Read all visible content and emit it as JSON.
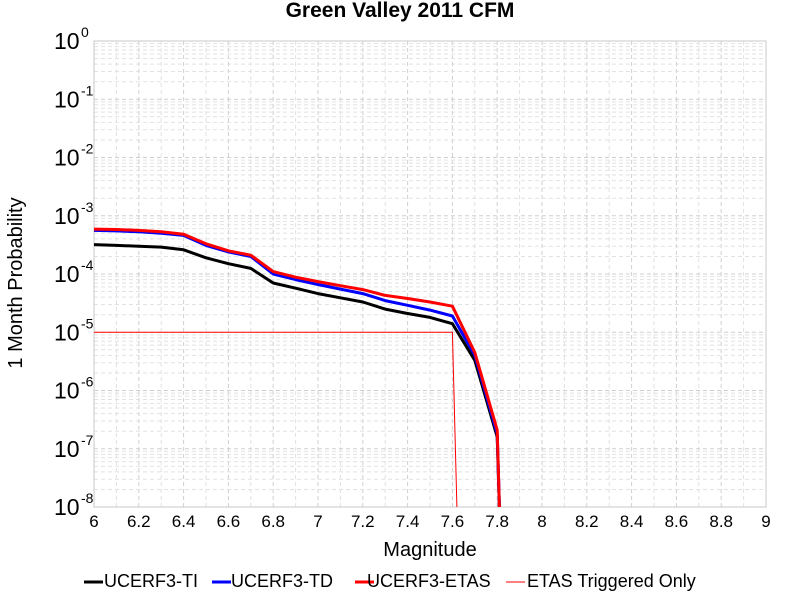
{
  "chart_data": {
    "type": "line",
    "title": "Green Valley 2011 CFM",
    "xlabel": "Magnitude",
    "ylabel": "1 Month Probability",
    "xlim": [
      6,
      9
    ],
    "ylim": [
      1e-08,
      1
    ],
    "yscale": "log",
    "grid": true,
    "legend_position": "bottom",
    "x_ticks": [
      "6",
      "6.2",
      "6.4",
      "6.6",
      "6.8",
      "7",
      "7.2",
      "7.4",
      "7.6",
      "7.8",
      "8",
      "8.2",
      "8.4",
      "8.6",
      "8.8",
      "9"
    ],
    "y_ticks": [
      {
        "base": "10",
        "exp": "0"
      },
      {
        "base": "10",
        "exp": "-1"
      },
      {
        "base": "10",
        "exp": "-2"
      },
      {
        "base": "10",
        "exp": "-3"
      },
      {
        "base": "10",
        "exp": "-4"
      },
      {
        "base": "10",
        "exp": "-5"
      },
      {
        "base": "10",
        "exp": "-6"
      },
      {
        "base": "10",
        "exp": "-7"
      },
      {
        "base": "10",
        "exp": "-8"
      }
    ],
    "series": [
      {
        "name": "UCERF3-TI",
        "color": "#000000",
        "x": [
          6.0,
          6.1,
          6.2,
          6.3,
          6.4,
          6.5,
          6.6,
          6.7,
          6.8,
          6.9,
          7.0,
          7.1,
          7.2,
          7.3,
          7.4,
          7.5,
          7.6,
          7.7,
          7.8,
          7.81
        ],
        "y": [
          0.00032,
          0.00031,
          0.0003,
          0.00029,
          0.00026,
          0.00019,
          0.00015,
          0.000125,
          7e-05,
          5.7e-05,
          4.6e-05,
          3.9e-05,
          3.3e-05,
          2.5e-05,
          2.1e-05,
          1.8e-05,
          1.4e-05,
          3.3e-06,
          1.6e-07,
          1e-08
        ]
      },
      {
        "name": "UCERF3-TD",
        "color": "#0000ff",
        "x": [
          6.0,
          6.1,
          6.2,
          6.3,
          6.4,
          6.5,
          6.6,
          6.7,
          6.8,
          6.9,
          7.0,
          7.1,
          7.2,
          7.3,
          7.4,
          7.5,
          7.6,
          7.7,
          7.8,
          7.81
        ],
        "y": [
          0.00056,
          0.00055,
          0.00053,
          0.0005,
          0.00046,
          0.00031,
          0.00024,
          0.0002,
          0.0001,
          8e-05,
          6.6e-05,
          5.5e-05,
          4.6e-05,
          3.5e-05,
          2.9e-05,
          2.4e-05,
          1.9e-05,
          4e-06,
          1.8e-07,
          1e-08
        ]
      },
      {
        "name": "UCERF3-ETAS",
        "color": "#ff0000",
        "x": [
          6.0,
          6.1,
          6.2,
          6.3,
          6.4,
          6.5,
          6.6,
          6.7,
          6.8,
          6.9,
          7.0,
          7.1,
          7.2,
          7.3,
          7.4,
          7.5,
          7.6,
          7.7,
          7.8,
          7.81
        ],
        "y": [
          0.00059,
          0.00058,
          0.00056,
          0.00053,
          0.00048,
          0.00033,
          0.00025,
          0.00021,
          0.00011,
          8.8e-05,
          7.4e-05,
          6.3e-05,
          5.4e-05,
          4.3e-05,
          3.8e-05,
          3.3e-05,
          2.8e-05,
          4.5e-06,
          2.1e-07,
          1e-08
        ]
      },
      {
        "name": "ETAS Triggered Only",
        "color": "#ff0000",
        "thin": true,
        "x": [
          6.0,
          7.6,
          7.62
        ],
        "y": [
          1e-05,
          1e-05,
          1e-08
        ]
      }
    ]
  }
}
